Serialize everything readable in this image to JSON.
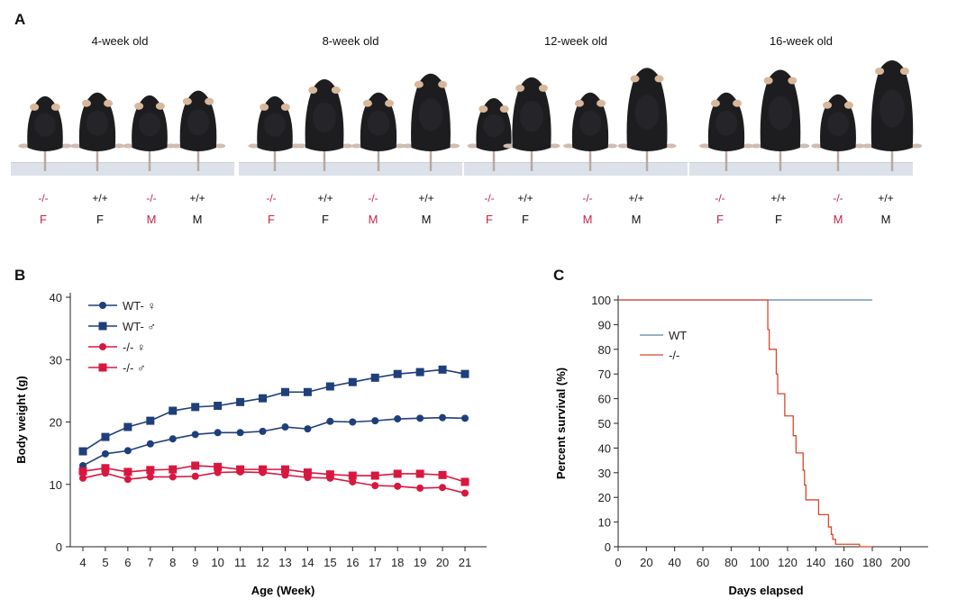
{
  "panelA": {
    "letter": "A",
    "groups": [
      {
        "title": "4-week old",
        "mice": [
          {
            "genotype": "-/-",
            "sex": "F",
            "ko": true,
            "size": 0.62
          },
          {
            "genotype": "+/+",
            "sex": "F",
            "ko": false,
            "size": 0.66
          },
          {
            "genotype": "-/-",
            "sex": "M",
            "ko": true,
            "size": 0.63
          },
          {
            "genotype": "+/+",
            "sex": "M",
            "ko": false,
            "size": 0.68
          }
        ]
      },
      {
        "title": "8-week old",
        "mice": [
          {
            "genotype": "-/-",
            "sex": "F",
            "ko": true,
            "size": 0.62
          },
          {
            "genotype": "+/+",
            "sex": "F",
            "ko": false,
            "size": 0.8
          },
          {
            "genotype": "-/-",
            "sex": "M",
            "ko": true,
            "size": 0.66
          },
          {
            "genotype": "+/+",
            "sex": "M",
            "ko": false,
            "size": 0.86
          }
        ]
      },
      {
        "title": "12-week old",
        "mice": [
          {
            "genotype": "-/-",
            "sex": "F",
            "ko": true,
            "size": 0.6
          },
          {
            "genotype": "+/+",
            "sex": "F",
            "ko": false,
            "size": 0.82
          },
          {
            "genotype": "-/-",
            "sex": "M",
            "ko": true,
            "size": 0.66
          },
          {
            "genotype": "+/+",
            "sex": "M",
            "ko": false,
            "size": 0.92
          }
        ]
      },
      {
        "title": "16-week old",
        "mice": [
          {
            "genotype": "-/-",
            "sex": "F",
            "ko": true,
            "size": 0.66
          },
          {
            "genotype": "+/+",
            "sex": "F",
            "ko": false,
            "size": 0.9
          },
          {
            "genotype": "-/-",
            "sex": "M",
            "ko": true,
            "size": 0.64
          },
          {
            "genotype": "+/+",
            "sex": "M",
            "ko": false,
            "size": 1.0
          }
        ]
      }
    ]
  },
  "colors": {
    "wt": "#1f3f7a",
    "ko": "#d8173f",
    "ko_text": "#c0264a",
    "surv_wt": "#5a7fa8",
    "surv_ko": "#d9472b"
  },
  "chart_data": [
    {
      "panel": "B",
      "type": "line",
      "xlabel": "Age (Week)",
      "ylabel": "Body weight (g)",
      "xlim": [
        4,
        21
      ],
      "ylim": [
        0,
        40
      ],
      "x": [
        4,
        5,
        6,
        7,
        8,
        9,
        10,
        11,
        12,
        13,
        14,
        15,
        16,
        17,
        18,
        19,
        20,
        21
      ],
      "xticks": [
        "4",
        "5",
        "6",
        "7",
        "8",
        "9",
        "10",
        "11",
        "12",
        "13",
        "14",
        "15",
        "16",
        "17",
        "18",
        "19",
        "20",
        "21"
      ],
      "yticks": [
        "0",
        "10",
        "20",
        "30",
        "40"
      ],
      "legend_position": "top-left",
      "series": [
        {
          "name": "WT- ♀",
          "marker": "circle",
          "color": "#1f3f7a",
          "values": [
            13.0,
            14.9,
            15.4,
            16.5,
            17.3,
            18.0,
            18.3,
            18.3,
            18.5,
            19.2,
            18.9,
            20.1,
            20.0,
            20.2,
            20.5,
            20.6,
            20.7,
            20.6
          ]
        },
        {
          "name": "WT- ♂",
          "marker": "square",
          "color": "#1f3f7a",
          "values": [
            15.3,
            17.6,
            19.2,
            20.2,
            21.8,
            22.4,
            22.6,
            23.2,
            23.8,
            24.8,
            24.8,
            25.7,
            26.4,
            27.1,
            27.7,
            28.0,
            28.4,
            27.7
          ]
        },
        {
          "name": "-/- ♀",
          "marker": "circle",
          "color": "#d8173f",
          "values": [
            11.0,
            11.8,
            10.8,
            11.2,
            11.2,
            11.3,
            11.9,
            12.0,
            11.9,
            11.5,
            11.1,
            11.0,
            10.4,
            9.8,
            9.7,
            9.4,
            9.5,
            8.6
          ]
        },
        {
          "name": "-/- ♂",
          "marker": "square",
          "color": "#d8173f",
          "values": [
            12.1,
            12.6,
            12.0,
            12.3,
            12.4,
            13.0,
            12.8,
            12.4,
            12.4,
            12.4,
            11.9,
            11.6,
            11.4,
            11.4,
            11.7,
            11.7,
            11.5,
            10.4
          ]
        }
      ]
    },
    {
      "panel": "C",
      "type": "line",
      "xlabel": "Days elapsed",
      "ylabel": "Percent survival (%)",
      "xlim": [
        0,
        210
      ],
      "ylim": [
        0,
        100
      ],
      "xticks": [
        "0",
        "20",
        "40",
        "60",
        "80",
        "100",
        "120",
        "140",
        "160",
        "180",
        "200"
      ],
      "yticks": [
        "0",
        "10",
        "20",
        "30",
        "40",
        "50",
        "60",
        "70",
        "80",
        "90",
        "100"
      ],
      "legend_position": "upper-left",
      "series": [
        {
          "name": "WT",
          "color": "#5a7fa8",
          "step": [
            [
              0,
              100
            ],
            [
              180,
              100
            ]
          ]
        },
        {
          "name": "-/-",
          "color": "#d9472b",
          "step": [
            [
              0,
              100
            ],
            [
              105,
              100
            ],
            [
              106,
              88
            ],
            [
              107,
              80
            ],
            [
              111,
              80
            ],
            [
              112,
              70
            ],
            [
              113,
              62
            ],
            [
              117,
              62
            ],
            [
              118,
              53
            ],
            [
              123,
              53
            ],
            [
              124,
              45
            ],
            [
              126,
              38
            ],
            [
              130,
              38
            ],
            [
              131,
              31
            ],
            [
              132,
              25
            ],
            [
              133,
              19
            ],
            [
              141,
              19
            ],
            [
              142,
              13
            ],
            [
              148,
              13
            ],
            [
              149,
              8
            ],
            [
              151,
              5
            ],
            [
              152,
              3
            ],
            [
              154,
              1
            ],
            [
              170,
              1
            ],
            [
              171,
              0
            ],
            [
              180,
              0
            ]
          ]
        }
      ]
    }
  ]
}
